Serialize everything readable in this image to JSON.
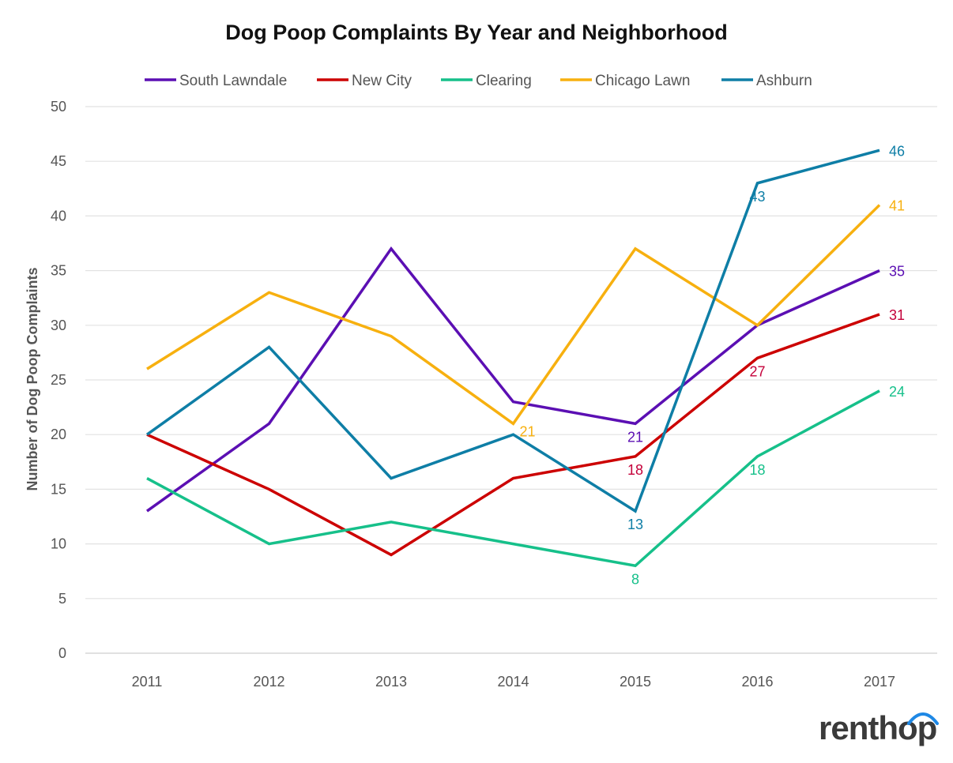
{
  "chart_data": {
    "type": "line",
    "title": "Dog Poop Complaints By Year and Neighborhood",
    "xlabel": "",
    "ylabel": "Number of Dog Poop Complaints",
    "categories": [
      "2011",
      "2012",
      "2013",
      "2014",
      "2015",
      "2016",
      "2017"
    ],
    "ylim": [
      0,
      50
    ],
    "yticks": [
      0,
      5,
      10,
      15,
      20,
      25,
      30,
      35,
      40,
      45,
      50
    ],
    "grid": "horizontal",
    "legend_position": "top",
    "series": [
      {
        "name": "South Lawndale",
        "color": "#5b0fb3",
        "values": [
          13,
          21,
          37,
          23,
          21,
          30,
          35
        ],
        "labels": [
          null,
          null,
          null,
          null,
          "21",
          null,
          "35"
        ]
      },
      {
        "name": "New City",
        "color": "#cc0000",
        "values": [
          20,
          15,
          9,
          16,
          18,
          27,
          31
        ],
        "labels": [
          null,
          null,
          null,
          null,
          "18",
          "27",
          "31"
        ]
      },
      {
        "name": "Clearing",
        "color": "#16c08a",
        "values": [
          16,
          10,
          12,
          10,
          8,
          18,
          24
        ],
        "labels": [
          null,
          null,
          null,
          null,
          "8",
          "18",
          "24"
        ]
      },
      {
        "name": "Chicago Lawn",
        "color": "#f7b00f",
        "values": [
          26,
          33,
          29,
          21,
          37,
          30,
          41
        ],
        "labels": [
          null,
          null,
          null,
          "21",
          null,
          null,
          "41"
        ]
      },
      {
        "name": "Ashburn",
        "color": "#0e7ea6",
        "values": [
          20,
          28,
          16,
          20,
          13,
          43,
          46
        ],
        "labels": [
          null,
          null,
          null,
          null,
          "13",
          "43",
          "46"
        ]
      }
    ]
  },
  "branding": {
    "logo_text": "renthop",
    "logo_arc_color": "#1e88e5"
  }
}
